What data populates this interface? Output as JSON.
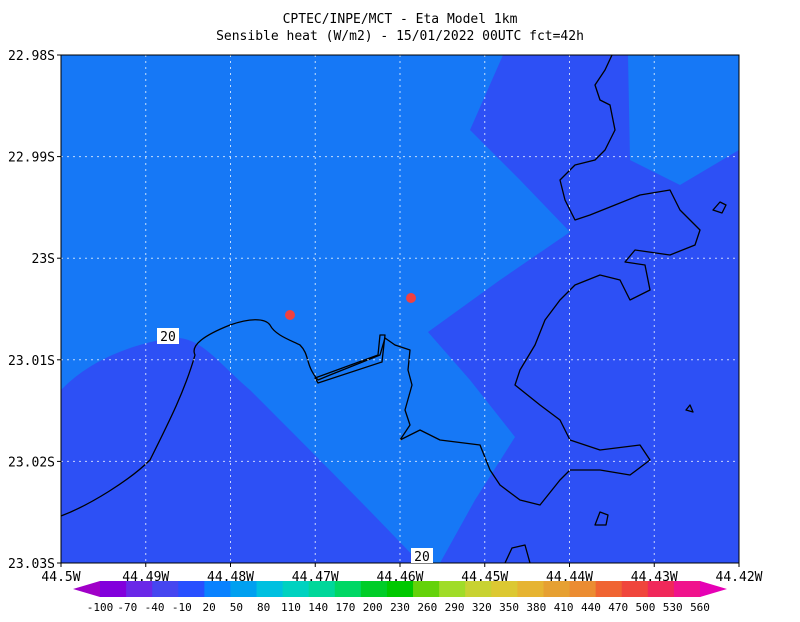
{
  "header": {
    "title_line1": "CPTEC/INPE/MCT -  Eta Model 1km",
    "title_line2": "Sensible heat (W/m2) - 15/01/2022 00UTC fct=42h"
  },
  "axes": {
    "y_labels": [
      "22.98S",
      "22.99S",
      "23S",
      "23.01S",
      "23.02S",
      "23.03S"
    ],
    "x_labels": [
      "44.5W",
      "44.49W",
      "44.48W",
      "44.47W",
      "44.46W",
      "44.45W",
      "44.44W",
      "44.43W",
      "44.42W"
    ]
  },
  "contour_labels": [
    "20",
    "20"
  ],
  "colorbar": {
    "labels": [
      -100,
      -70,
      -40,
      -10,
      20,
      50,
      80,
      110,
      140,
      170,
      200,
      230,
      260,
      290,
      320,
      350,
      380,
      410,
      440,
      470,
      500,
      530,
      560
    ],
    "colors": [
      "#a000c8",
      "#8200dc",
      "#6a28e8",
      "#4646f0",
      "#2850ff",
      "#0a82ff",
      "#00a0f0",
      "#00c0e0",
      "#00d2c0",
      "#00d79a",
      "#00d764",
      "#00cd28",
      "#00c800",
      "#64d20a",
      "#a0dc28",
      "#c8d232",
      "#dcc832",
      "#e6b432",
      "#e6a032",
      "#eb8c32",
      "#f06432",
      "#f0463c",
      "#f0285a",
      "#f0148c",
      "#e600b4"
    ]
  }
}
